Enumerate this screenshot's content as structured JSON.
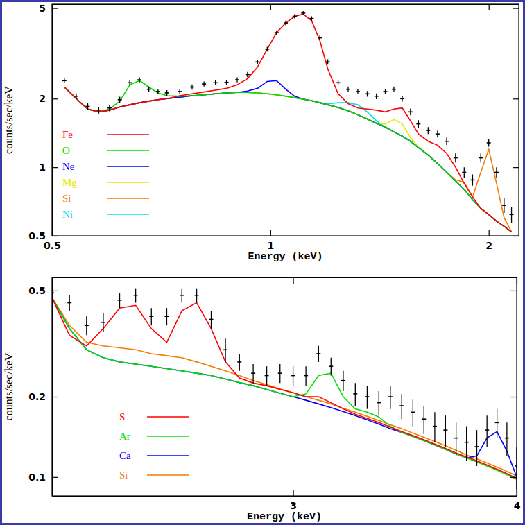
{
  "chart_data": [
    {
      "type": "line",
      "x_label": "Energy (keV)",
      "y_label": "counts/sec/keV",
      "log": true,
      "legend": "left",
      "xlim": [
        0.5,
        2.2
      ],
      "ylim": [
        0.5,
        5.2
      ],
      "xticks": [
        0.5,
        1,
        2
      ],
      "yticks": [
        0.5,
        1,
        2,
        5
      ],
      "x": [
        0.52,
        0.54,
        0.56,
        0.58,
        0.6,
        0.62,
        0.64,
        0.66,
        0.68,
        0.7,
        0.72,
        0.75,
        0.78,
        0.81,
        0.84,
        0.87,
        0.9,
        0.93,
        0.96,
        0.99,
        1.02,
        1.05,
        1.08,
        1.11,
        1.14,
        1.17,
        1.2,
        1.24,
        1.28,
        1.32,
        1.36,
        1.4,
        1.44,
        1.48,
        1.52,
        1.56,
        1.6,
        1.65,
        1.7,
        1.75,
        1.8,
        1.85,
        1.9,
        1.95,
        2.0,
        2.05,
        2.1,
        2.15
      ],
      "series": [
        {
          "type": "scatter",
          "marker": "cross",
          "color": "#000000",
          "values": [
            2.4,
            2.05,
            1.85,
            1.78,
            1.82,
            1.98,
            2.35,
            2.42,
            2.2,
            2.15,
            2.12,
            2.15,
            2.25,
            2.32,
            2.35,
            2.36,
            2.42,
            2.55,
            2.9,
            3.3,
            3.9,
            4.3,
            4.6,
            4.75,
            4.5,
            3.7,
            2.9,
            2.35,
            2.2,
            2.15,
            2.1,
            2.05,
            2.15,
            2.2,
            2.0,
            1.75,
            1.55,
            1.45,
            1.4,
            1.3,
            1.1,
            0.95,
            0.88,
            1.1,
            1.28,
            0.95,
            0.68,
            0.62
          ],
          "errors": [
            0.06,
            0.06,
            0.06,
            0.06,
            0.06,
            0.06,
            0.06,
            0.06,
            0.06,
            0.06,
            0.06,
            0.06,
            0.06,
            0.06,
            0.06,
            0.06,
            0.06,
            0.07,
            0.07,
            0.08,
            0.09,
            0.1,
            0.1,
            0.1,
            0.1,
            0.09,
            0.08,
            0.06,
            0.06,
            0.06,
            0.06,
            0.06,
            0.06,
            0.06,
            0.06,
            0.06,
            0.06,
            0.05,
            0.05,
            0.05,
            0.05,
            0.05,
            0.05,
            0.05,
            0.05,
            0.05,
            0.05,
            0.05
          ]
        },
        {
          "name": "Fe",
          "type": "line",
          "color": "#ff0000",
          "values": [
            2.25,
            2.0,
            1.8,
            1.75,
            1.78,
            1.84,
            1.88,
            1.92,
            1.95,
            1.98,
            2.0,
            2.06,
            2.1,
            2.14,
            2.18,
            2.22,
            2.3,
            2.45,
            2.75,
            3.3,
            3.9,
            4.3,
            4.6,
            4.7,
            4.4,
            3.6,
            2.7,
            2.1,
            1.9,
            1.82,
            1.8,
            1.78,
            1.75,
            1.8,
            1.82,
            1.6,
            1.4,
            1.3,
            1.25,
            1.15,
            1.0,
            0.85,
            0.74,
            0.66,
            0.62,
            0.58,
            0.55,
            0.52
          ]
        },
        {
          "name": "O",
          "type": "line",
          "color": "#00d800",
          "values": [
            2.25,
            2.0,
            1.8,
            1.75,
            1.8,
            1.95,
            2.3,
            2.4,
            2.25,
            2.12,
            2.06,
            2.05,
            2.06,
            2.08,
            2.1,
            2.12,
            2.13,
            2.13,
            2.12,
            2.1,
            2.08,
            2.05,
            2.02,
            1.99,
            1.96,
            1.92,
            1.88,
            1.83,
            1.77,
            1.7,
            1.63,
            1.56,
            1.5,
            1.43,
            1.37,
            1.3,
            1.22,
            1.13,
            1.04,
            0.95,
            0.87,
            0.8,
            0.72,
            0.66,
            0.62,
            0.58,
            0.55,
            0.52
          ]
        },
        {
          "name": "Ne",
          "type": "line",
          "color": "#0000ff",
          "values": [
            2.25,
            2.0,
            1.8,
            1.75,
            1.78,
            1.84,
            1.88,
            1.92,
            1.95,
            1.98,
            2.0,
            2.03,
            2.06,
            2.08,
            2.1,
            2.12,
            2.13,
            2.16,
            2.22,
            2.38,
            2.4,
            2.2,
            2.05,
            1.99,
            1.96,
            1.92,
            1.88,
            1.83,
            1.77,
            1.7,
            1.63,
            1.56,
            1.5,
            1.43,
            1.37,
            1.3,
            1.22,
            1.13,
            1.04,
            0.95,
            0.87,
            0.8,
            0.72,
            0.66,
            0.62,
            0.58,
            0.55,
            0.52
          ]
        },
        {
          "name": "Mg",
          "type": "line",
          "color": "#e6e600",
          "values": [
            2.25,
            2.0,
            1.8,
            1.75,
            1.78,
            1.84,
            1.88,
            1.92,
            1.95,
            1.98,
            2.0,
            2.03,
            2.06,
            2.08,
            2.1,
            2.12,
            2.13,
            2.13,
            2.12,
            2.1,
            2.08,
            2.05,
            2.02,
            1.99,
            1.96,
            1.92,
            1.88,
            1.83,
            1.77,
            1.7,
            1.63,
            1.56,
            1.55,
            1.62,
            1.55,
            1.35,
            1.22,
            1.13,
            1.04,
            0.95,
            0.87,
            0.8,
            0.72,
            0.66,
            0.62,
            0.58,
            0.55,
            0.52
          ]
        },
        {
          "name": "Si",
          "type": "line",
          "color": "#f07c00",
          "values": [
            2.25,
            2.0,
            1.8,
            1.75,
            1.78,
            1.84,
            1.88,
            1.92,
            1.95,
            1.98,
            2.0,
            2.03,
            2.06,
            2.08,
            2.1,
            2.12,
            2.13,
            2.13,
            2.12,
            2.1,
            2.08,
            2.05,
            2.02,
            1.99,
            1.96,
            1.92,
            1.88,
            1.83,
            1.77,
            1.7,
            1.63,
            1.56,
            1.5,
            1.43,
            1.37,
            1.3,
            1.22,
            1.13,
            1.04,
            0.95,
            0.88,
            0.86,
            0.74,
            0.95,
            1.2,
            0.85,
            0.6,
            0.52
          ]
        },
        {
          "name": "Ni",
          "type": "line",
          "color": "#00e0ee",
          "values": [
            2.25,
            2.0,
            1.8,
            1.75,
            1.78,
            1.84,
            1.88,
            1.92,
            1.95,
            1.98,
            2.0,
            2.03,
            2.06,
            2.08,
            2.1,
            2.12,
            2.13,
            2.13,
            2.12,
            2.1,
            2.08,
            2.05,
            2.02,
            1.99,
            1.96,
            1.92,
            1.9,
            1.92,
            1.92,
            1.88,
            1.75,
            1.6,
            1.5,
            1.43,
            1.37,
            1.3,
            1.22,
            1.13,
            1.04,
            0.95,
            0.87,
            0.8,
            0.72,
            0.66,
            0.62,
            0.58,
            0.55,
            0.52
          ]
        }
      ]
    },
    {
      "type": "line",
      "x_label": "Energy (keV)",
      "y_label": "counts/sec/keV",
      "log": true,
      "legend": "left",
      "xlim": [
        2.2,
        4
      ],
      "ylim": [
        0.085,
        0.56
      ],
      "xticks": [
        3,
        4
      ],
      "yticks": [
        0.1,
        0.2,
        0.5
      ],
      "x": [
        2.2,
        2.25,
        2.3,
        2.35,
        2.4,
        2.45,
        2.5,
        2.55,
        2.6,
        2.65,
        2.7,
        2.75,
        2.8,
        2.85,
        2.9,
        2.95,
        3.0,
        3.05,
        3.1,
        3.15,
        3.2,
        3.25,
        3.3,
        3.35,
        3.4,
        3.45,
        3.5,
        3.55,
        3.6,
        3.65,
        3.7,
        3.75,
        3.8,
        3.85,
        3.9,
        3.95,
        4.0
      ],
      "series": [
        {
          "type": "scatter",
          "marker": "cross",
          "color": "#000000",
          "values": [
            0.49,
            0.45,
            0.37,
            0.38,
            0.46,
            0.48,
            0.4,
            0.4,
            0.48,
            0.48,
            0.39,
            0.3,
            0.27,
            0.245,
            0.24,
            0.245,
            0.24,
            0.24,
            0.29,
            0.26,
            0.23,
            0.205,
            0.2,
            0.19,
            0.2,
            0.185,
            0.175,
            0.165,
            0.155,
            0.15,
            0.14,
            0.135,
            0.13,
            0.15,
            0.16,
            0.14,
            0.11
          ],
          "errors": [
            0.03,
            0.03,
            0.03,
            0.03,
            0.03,
            0.03,
            0.03,
            0.03,
            0.03,
            0.03,
            0.03,
            0.03,
            0.02,
            0.02,
            0.02,
            0.02,
            0.02,
            0.02,
            0.02,
            0.02,
            0.02,
            0.02,
            0.02,
            0.02,
            0.02,
            0.02,
            0.02,
            0.02,
            0.02,
            0.02,
            0.02,
            0.02,
            0.02,
            0.02,
            0.02,
            0.02,
            0.02
          ]
        },
        {
          "name": "S",
          "type": "line",
          "color": "#ff0000",
          "values": [
            0.47,
            0.34,
            0.31,
            0.36,
            0.43,
            0.44,
            0.36,
            0.32,
            0.42,
            0.45,
            0.36,
            0.27,
            0.235,
            0.225,
            0.22,
            0.213,
            0.207,
            0.2,
            0.2,
            0.19,
            0.18,
            0.172,
            0.166,
            0.16,
            0.154,
            0.148,
            0.143,
            0.138,
            0.133,
            0.128,
            0.123,
            0.119,
            0.115,
            0.111,
            0.107,
            0.103,
            0.099
          ]
        },
        {
          "name": "Ar",
          "type": "line",
          "color": "#00e000",
          "values": [
            0.47,
            0.36,
            0.3,
            0.28,
            0.27,
            0.265,
            0.26,
            0.255,
            0.25,
            0.245,
            0.24,
            0.233,
            0.226,
            0.22,
            0.213,
            0.206,
            0.2,
            0.205,
            0.24,
            0.245,
            0.2,
            0.18,
            0.175,
            0.168,
            0.155,
            0.147,
            0.142,
            0.137,
            0.132,
            0.127,
            0.122,
            0.118,
            0.114,
            0.11,
            0.106,
            0.102,
            0.098
          ]
        },
        {
          "name": "Ca",
          "type": "line",
          "color": "#0000ff",
          "values": [
            0.47,
            0.36,
            0.3,
            0.28,
            0.27,
            0.265,
            0.26,
            0.255,
            0.25,
            0.245,
            0.24,
            0.233,
            0.226,
            0.22,
            0.213,
            0.206,
            0.2,
            0.194,
            0.188,
            0.182,
            0.176,
            0.17,
            0.164,
            0.158,
            0.152,
            0.147,
            0.142,
            0.137,
            0.132,
            0.127,
            0.122,
            0.118,
            0.12,
            0.14,
            0.148,
            0.125,
            0.1
          ]
        },
        {
          "name": "Si",
          "type": "line",
          "color": "#f07c00",
          "values": [
            0.47,
            0.37,
            0.32,
            0.31,
            0.305,
            0.3,
            0.29,
            0.285,
            0.28,
            0.27,
            0.26,
            0.25,
            0.24,
            0.23,
            0.222,
            0.214,
            0.207,
            0.2,
            0.194,
            0.188,
            0.181,
            0.175,
            0.169,
            0.163,
            0.157,
            0.152,
            0.146,
            0.141,
            0.136,
            0.131,
            0.126,
            0.121,
            0.117,
            0.113,
            0.109,
            0.105,
            0.101
          ]
        }
      ]
    }
  ]
}
